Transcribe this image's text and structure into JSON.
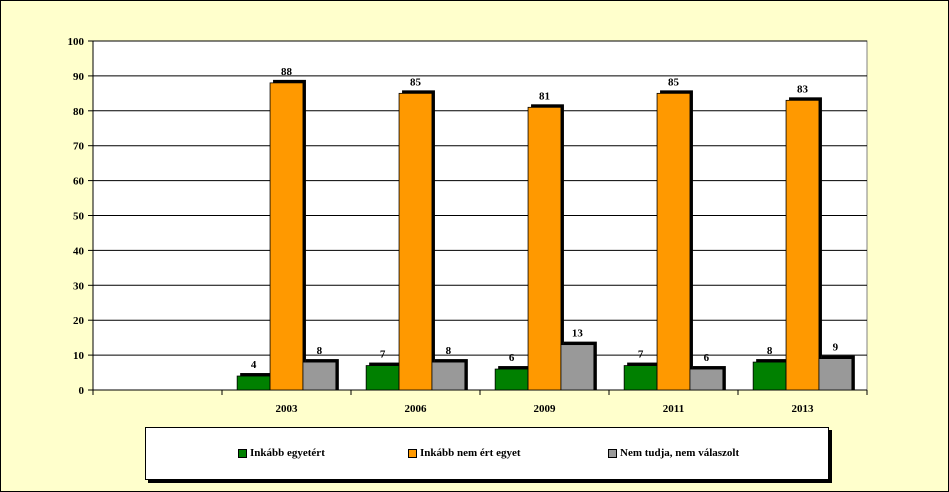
{
  "colors": {
    "background": "#ffffcc",
    "plot_background": "#ffffff",
    "series": [
      "#008000",
      "#ff9900",
      "#999999"
    ]
  },
  "chart_data": {
    "type": "bar",
    "categories": [
      "",
      "2003",
      "2006",
      "2009",
      "2011",
      "2013"
    ],
    "series": [
      {
        "name": "Inkább egyetért",
        "values": [
          null,
          4,
          7,
          6,
          7,
          8
        ]
      },
      {
        "name": "Inkább nem ért egyet",
        "values": [
          null,
          88,
          85,
          81,
          85,
          83
        ]
      },
      {
        "name": "Nem tudja, nem válaszolt",
        "values": [
          null,
          8,
          8,
          13,
          6,
          9
        ]
      }
    ],
    "yticks": [
      "0",
      "10",
      "20",
      "30",
      "40",
      "50",
      "60",
      "70",
      "80",
      "90",
      "100"
    ],
    "ylim": [
      0,
      100
    ],
    "grid": true,
    "data_labels": true,
    "legend_position": "bottom"
  }
}
